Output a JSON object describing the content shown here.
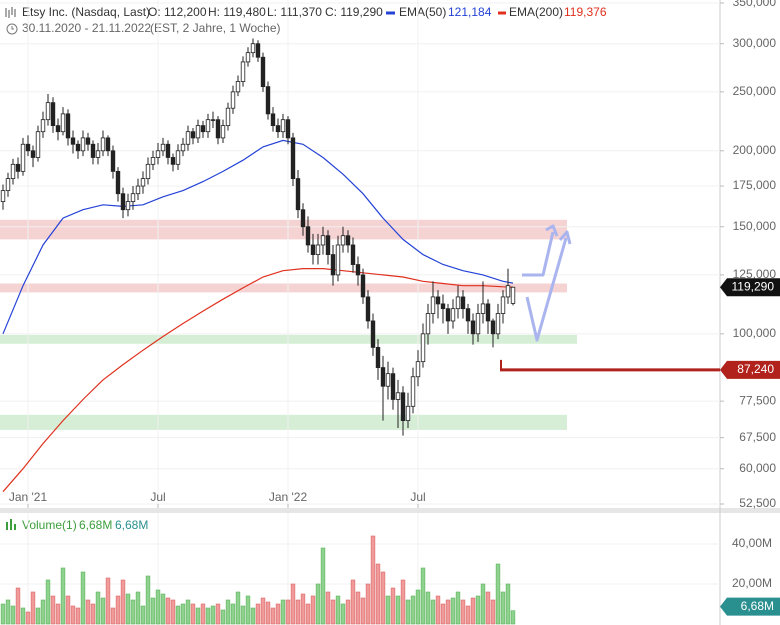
{
  "header": {
    "title": "Etsy Inc. (Nasdaq, Last)",
    "open": "O: 112,200",
    "high": "H: 119,480",
    "low": "L: 111,370",
    "close": "C: 119,290",
    "ema50_name": "EMA(50)",
    "ema50_value": "121,184",
    "ema200_name": "EMA(200)",
    "ema200_value": "119,376",
    "range": "30.11.2020 - 21.11.2022",
    "range_note": "(EST, 2 Jahre, 1 Woche)"
  },
  "chart_data": [
    {
      "type": "candlestick",
      "log_scale": true,
      "grid": true,
      "xlim": [
        -0.6,
        143.4
      ],
      "xticks": [
        {
          "value": 5,
          "label": "Jan '21"
        },
        {
          "value": 31,
          "label": "Jul"
        },
        {
          "value": 57,
          "label": "Jan '22"
        },
        {
          "value": 83,
          "label": "Jul"
        }
      ],
      "ylim": [
        52500,
        350000
      ],
      "yticks": [
        {
          "value": 52500,
          "label": "52,500"
        },
        {
          "value": 60000,
          "label": "60,000"
        },
        {
          "value": 67500,
          "label": "67,500"
        },
        {
          "value": 77500,
          "label": "77,500"
        },
        {
          "value": 100000,
          "label": "100,000"
        },
        {
          "value": 125000,
          "label": "125,000"
        },
        {
          "value": 150000,
          "label": "150,000"
        },
        {
          "value": 175000,
          "label": "175,000"
        },
        {
          "value": 200000,
          "label": "200,000"
        },
        {
          "value": 250000,
          "label": "250,000"
        },
        {
          "value": 300000,
          "label": "300,000"
        },
        {
          "value": 350000,
          "label": "350,000"
        }
      ],
      "series": [
        {
          "name": "Etsy Inc.",
          "up_color": "#ffffff",
          "down_color": "#222222",
          "open": [
            165000,
            172000,
            180000,
            190000,
            185000,
            205000,
            200000,
            195000,
            215000,
            225000,
            240000,
            220000,
            215000,
            230000,
            210000,
            205000,
            200000,
            210000,
            205000,
            195000,
            200000,
            210000,
            200000,
            185000,
            170000,
            160000,
            165000,
            170000,
            175000,
            180000,
            190000,
            195000,
            200000,
            205000,
            195000,
            190000,
            200000,
            205000,
            215000,
            210000,
            220000,
            215000,
            225000,
            225000,
            210000,
            220000,
            235000,
            250000,
            260000,
            280000,
            290000,
            300000,
            285000,
            255000,
            230000,
            220000,
            215000,
            225000,
            210000,
            180000,
            160000,
            150000,
            140000,
            135000,
            140000,
            145000,
            135000,
            125000,
            140000,
            145000,
            140000,
            130000,
            125000,
            115000,
            105000,
            95000,
            88000,
            82000,
            86000,
            78000,
            80000,
            72000,
            76000,
            85000,
            90000,
            100000,
            108000,
            115000,
            112000,
            110000,
            105000,
            110000,
            115000,
            110000,
            105000,
            100000,
            108000,
            112000,
            105000,
            100000,
            108000,
            115000,
            112200
          ],
          "high": [
            176000,
            184000,
            194000,
            195000,
            210000,
            212000,
            204000,
            220000,
            232000,
            248000,
            245000,
            226000,
            236000,
            234000,
            216000,
            208000,
            216000,
            214000,
            208000,
            206000,
            216000,
            212000,
            204000,
            188000,
            174000,
            170000,
            175000,
            180000,
            185000,
            195000,
            200000,
            206000,
            210000,
            208000,
            198000,
            205000,
            210000,
            220000,
            218000,
            225000,
            224000,
            230000,
            232000,
            228000,
            225000,
            240000,
            256000,
            266000,
            286000,
            296000,
            306000,
            304000,
            290000,
            260000,
            236000,
            226000,
            230000,
            228000,
            214000,
            186000,
            164000,
            156000,
            146000,
            146000,
            150000,
            148000,
            140000,
            145000,
            150000,
            148000,
            144000,
            134000,
            128000,
            118000,
            108000,
            98000,
            92000,
            90000,
            88000,
            84000,
            82000,
            80000,
            88000,
            94000,
            104000,
            112000,
            122000,
            118000,
            116000,
            112000,
            114000,
            120000,
            118000,
            112000,
            108000,
            112000,
            122000,
            114000,
            106000,
            112000,
            118000,
            128000,
            119480
          ],
          "low": [
            160000,
            168000,
            176000,
            180000,
            182000,
            196000,
            188000,
            192000,
            210000,
            220000,
            214000,
            208000,
            212000,
            204000,
            198000,
            194000,
            196000,
            200000,
            190000,
            190000,
            196000,
            196000,
            180000,
            165000,
            155000,
            156000,
            160000,
            166000,
            170000,
            176000,
            186000,
            190000,
            196000,
            190000,
            185000,
            186000,
            196000,
            200000,
            205000,
            206000,
            210000,
            210000,
            218000,
            205000,
            206000,
            216000,
            230000,
            246000,
            255000,
            275000,
            285000,
            280000,
            250000,
            225000,
            215000,
            210000,
            210000,
            205000,
            175000,
            155000,
            145000,
            136000,
            130000,
            130000,
            135000,
            130000,
            120000,
            122000,
            136000,
            136000,
            126000,
            120000,
            112000,
            102000,
            92000,
            84000,
            72000,
            78000,
            75000,
            70000,
            68000,
            70000,
            74000,
            82000,
            88000,
            96000,
            104000,
            106000,
            104000,
            100000,
            102000,
            106000,
            106000,
            100000,
            96000,
            97000,
            104000,
            100000,
            95000,
            98000,
            104000,
            112000,
            111370
          ],
          "close": [
            172000,
            180000,
            190000,
            185000,
            205000,
            200000,
            195000,
            215000,
            225000,
            240000,
            220000,
            215000,
            230000,
            210000,
            205000,
            200000,
            210000,
            205000,
            195000,
            200000,
            210000,
            200000,
            185000,
            170000,
            160000,
            165000,
            170000,
            175000,
            180000,
            190000,
            195000,
            200000,
            205000,
            195000,
            190000,
            200000,
            205000,
            215000,
            210000,
            220000,
            215000,
            225000,
            225000,
            210000,
            220000,
            235000,
            250000,
            260000,
            280000,
            290000,
            300000,
            285000,
            255000,
            230000,
            220000,
            215000,
            225000,
            210000,
            180000,
            160000,
            150000,
            140000,
            135000,
            140000,
            145000,
            135000,
            125000,
            140000,
            145000,
            140000,
            130000,
            125000,
            115000,
            105000,
            95000,
            88000,
            82000,
            86000,
            78000,
            80000,
            72000,
            76000,
            85000,
            90000,
            100000,
            108000,
            115000,
            112000,
            110000,
            105000,
            110000,
            115000,
            110000,
            105000,
            100000,
            108000,
            112000,
            105000,
            100000,
            108000,
            115000,
            120000,
            119290
          ]
        }
      ],
      "lines": [
        {
          "name": "EMA(50)",
          "color": "#2442d6",
          "x": [
            0,
            4,
            8,
            12,
            16,
            20,
            24,
            28,
            32,
            36,
            40,
            44,
            48,
            52,
            56,
            60,
            64,
            68,
            72,
            76,
            80,
            84,
            88,
            92,
            96,
            100,
            102
          ],
          "values": [
            100000,
            120000,
            140000,
            155000,
            160000,
            163000,
            162000,
            163000,
            168000,
            172000,
            178000,
            185000,
            193000,
            203000,
            208000,
            205000,
            195000,
            183000,
            170000,
            155000,
            143000,
            135000,
            130000,
            127000,
            125000,
            122000,
            121184
          ]
        },
        {
          "name": "EMA(200)",
          "color": "#e0301e",
          "x": [
            0,
            4,
            8,
            12,
            16,
            20,
            24,
            28,
            32,
            36,
            40,
            44,
            48,
            52,
            56,
            60,
            64,
            68,
            72,
            76,
            80,
            84,
            88,
            92,
            96,
            100,
            102
          ],
          "values": [
            55000,
            60000,
            66000,
            72000,
            78000,
            84000,
            89000,
            94000,
            99000,
            104000,
            109000,
            114000,
            119000,
            124000,
            127000,
            128000,
            128000,
            127000,
            126000,
            125000,
            124000,
            122000,
            121000,
            120000,
            120000,
            119500,
            119376
          ]
        }
      ],
      "zones": [
        {
          "low": 143000,
          "high": 154000,
          "color": "#f6d3d3"
        },
        {
          "low": 117000,
          "high": 121000,
          "color": "#f6d3d3"
        },
        {
          "low": 96300,
          "high": 99600,
          "color": "#d6eed6"
        },
        {
          "low": 69500,
          "high": 73600,
          "color": "#d6eed6"
        }
      ],
      "last_label": {
        "value": 119290,
        "label": "119,290",
        "color": "#111111"
      },
      "level": {
        "value": 87240,
        "label": "87,240",
        "color": "#b0221b"
      }
    },
    {
      "type": "bar",
      "title": "Volume(1)",
      "subtitle": "6,68M",
      "title_value": "6,68M",
      "up_color": "#8fd18f",
      "down_color": "#f09a9a",
      "ylim": [
        0,
        56
      ],
      "yticks": [
        {
          "value": 20,
          "label": "20,00M"
        },
        {
          "value": 40,
          "label": "40,00M"
        }
      ],
      "values": [
        10,
        12,
        9,
        18,
        8,
        6,
        16,
        8,
        12,
        22,
        14,
        10,
        28,
        14,
        9,
        8,
        26,
        12,
        10,
        16,
        13,
        23,
        8,
        14,
        22,
        15,
        12,
        16,
        9,
        24,
        13,
        17,
        15,
        13,
        12,
        9,
        10,
        12,
        10,
        8,
        10,
        8,
        9,
        10,
        7,
        12,
        10,
        16,
        9,
        14,
        8,
        10,
        13,
        11,
        8,
        10,
        12,
        12,
        20,
        12,
        15,
        10,
        14,
        20,
        38,
        16,
        12,
        14,
        10,
        12,
        22,
        16,
        13,
        20,
        44,
        30,
        26,
        14,
        18,
        14,
        22,
        12,
        14,
        17,
        28,
        16,
        12,
        14,
        10,
        12,
        13,
        16,
        12,
        9,
        13,
        14,
        20,
        16,
        12,
        30,
        16,
        20,
        6.68
      ],
      "last_label": {
        "value": 6.68,
        "label": "6,68M",
        "color": "#2a8f8f"
      }
    }
  ]
}
